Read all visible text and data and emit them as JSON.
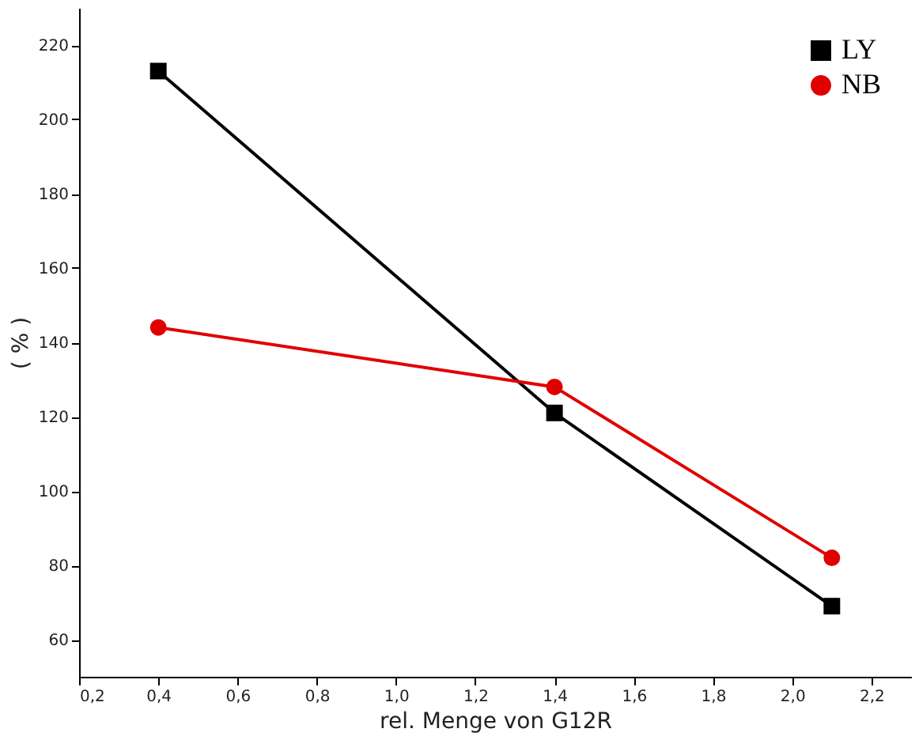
{
  "chart_data": {
    "type": "line",
    "xlabel": "rel. Menge von G12R",
    "ylabel": "( % )",
    "series": [
      {
        "name": "LY",
        "color": "#000000",
        "marker": "square",
        "x": [
          0.4,
          1.4,
          2.1
        ],
        "values": [
          213,
          121,
          69
        ]
      },
      {
        "name": "NB",
        "color": "#e00000",
        "marker": "circle",
        "x": [
          0.4,
          1.4,
          2.1
        ],
        "values": [
          144,
          128,
          82
        ]
      }
    ],
    "xlim": [
      0.2,
      2.3
    ],
    "ylim": [
      50,
      230
    ],
    "xticks": [
      {
        "value": 0.2,
        "label": "0,2"
      },
      {
        "value": 0.4,
        "label": "0,4"
      },
      {
        "value": 0.6,
        "label": "0,6"
      },
      {
        "value": 0.8,
        "label": "0,8"
      },
      {
        "value": 1.0,
        "label": "1,0"
      },
      {
        "value": 1.2,
        "label": "1,2"
      },
      {
        "value": 1.4,
        "label": "1,4"
      },
      {
        "value": 1.6,
        "label": "1,6"
      },
      {
        "value": 1.8,
        "label": "1,8"
      },
      {
        "value": 2.0,
        "label": "2,0"
      },
      {
        "value": 2.2,
        "label": "2,2"
      }
    ],
    "yticks": [
      60,
      80,
      100,
      120,
      140,
      160,
      180,
      200,
      220
    ],
    "grid": false,
    "legend": "top right",
    "line_style": "solid"
  }
}
